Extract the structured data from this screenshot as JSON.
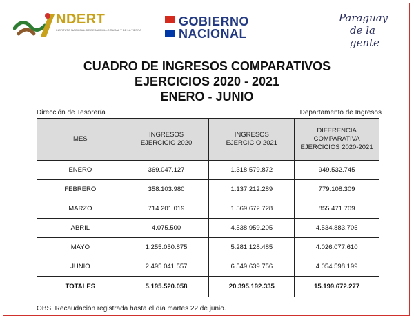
{
  "logos": {
    "indert": {
      "word": "NDERT",
      "subtitle": "INSTITUTO NACIONAL DE DESARROLLO RURAL Y DE LA TIERRA"
    },
    "gobierno": {
      "line1": "GOBIERNO",
      "line2": "NACIONAL"
    },
    "paraguay": {
      "line1": "Paraguay",
      "line2": "de la gente"
    }
  },
  "title": {
    "line1": "CUADRO DE INGRESOS COMPARATIVOS",
    "line2": "EJERCICIOS 2020 - 2021",
    "line3": "ENERO - JUNIO"
  },
  "subheader": {
    "left": "Dirección de Tesorería",
    "right": "Departamento de Ingresos"
  },
  "table": {
    "headers": [
      [
        "MES"
      ],
      [
        "INGRESOS",
        "EJERCICIO 2020"
      ],
      [
        "INGRESOS",
        "EJERCICIO 2021"
      ],
      [
        "DIFERENCIA",
        "COMPARATIVA",
        "EJERCICIOS 2020-2021"
      ]
    ],
    "rows": [
      [
        "ENERO",
        "369.047.127",
        "1.318.579.872",
        "949.532.745"
      ],
      [
        "FEBRERO",
        "358.103.980",
        "1.137.212.289",
        "779.108.309"
      ],
      [
        "MARZO",
        "714.201.019",
        "1.569.672.728",
        "855.471.709"
      ],
      [
        "ABRIL",
        "4.075.500",
        "4.538.959.205",
        "4.534.883.705"
      ],
      [
        "MAYO",
        "1.255.050.875",
        "5.281.128.485",
        "4.026.077.610"
      ],
      [
        "JUNIO",
        "2.495.041.557",
        "6.549.639.756",
        "4.054.598.199"
      ]
    ],
    "totals": [
      "TOTALES",
      "5.195.520.058",
      "20.395.192.335",
      "15.199.672.277"
    ]
  },
  "note": "OBS: Recaudación registrada hasta el día martes 22 de junio.",
  "colors": {
    "frame": "#d0312d",
    "header_bg": "#dcdcdc",
    "gobierno_blue": "#233a82",
    "indert_gold": "#c8a21b"
  }
}
